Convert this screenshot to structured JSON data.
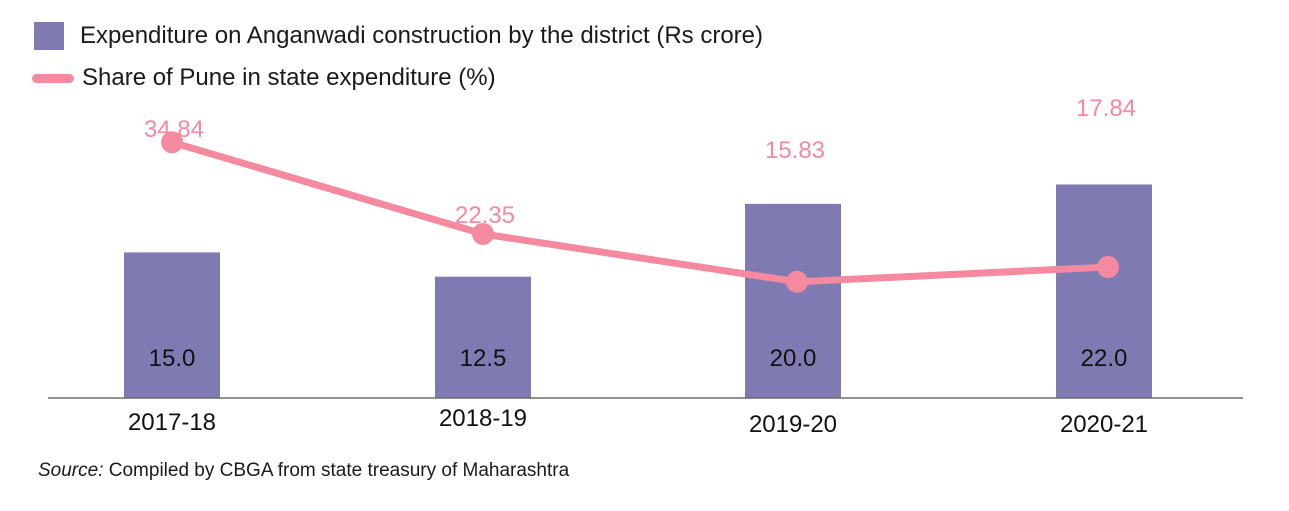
{
  "chart_data": {
    "type": "bar",
    "categories": [
      "2017-18",
      "2018-19",
      "2019-20",
      "2020-21"
    ],
    "series": [
      {
        "name": "Expenditure on Anganwadi construction by the district (Rs crore)",
        "kind": "bar",
        "values": [
          15.0,
          12.5,
          20.0,
          22.0
        ],
        "value_labels": [
          "15.0",
          "12.5",
          "20.0",
          "22.0"
        ],
        "color": "#7f7ab2"
      },
      {
        "name": "Share of Pune in state expenditure (%)",
        "kind": "line",
        "values": [
          34.84,
          22.35,
          15.83,
          17.84
        ],
        "value_labels": [
          "34.84",
          "22.35",
          "15.83",
          "17.84"
        ],
        "color": "#f4899f"
      }
    ],
    "bar_axis_range": [
      0,
      30
    ],
    "line_axis_range": [
      0,
      45
    ],
    "grid": false,
    "legend_position": "top-left"
  },
  "source": {
    "prefix": "Source:",
    "text": " Compiled by CBGA from state treasury of Maharashtra"
  }
}
